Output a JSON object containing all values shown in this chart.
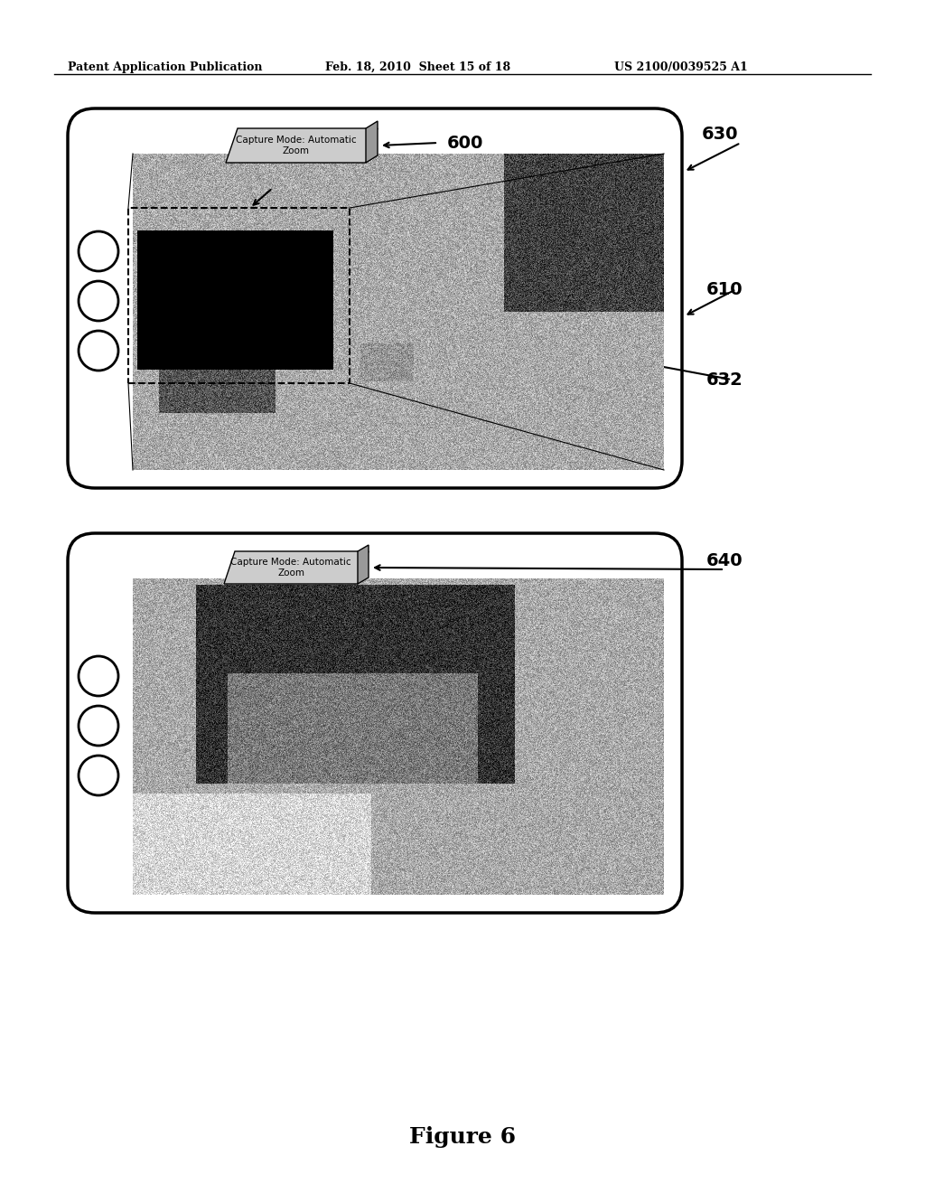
{
  "bg_color": "#ffffff",
  "header_left": "Patent Application Publication",
  "header_mid": "Feb. 18, 2010  Sheet 15 of 18",
  "header_right": "US 2100/0039525 A1",
  "figure_label": "Figure 6",
  "top_device": {
    "label": "630",
    "screen_label": "610",
    "tag_label": "600",
    "tag_text": "Capture Mode: Automatic\nZoom",
    "zoom_box_label": "632"
  },
  "bottom_device": {
    "label": "640",
    "tag_text": "Capture Mode: Automatic\nZoom"
  }
}
